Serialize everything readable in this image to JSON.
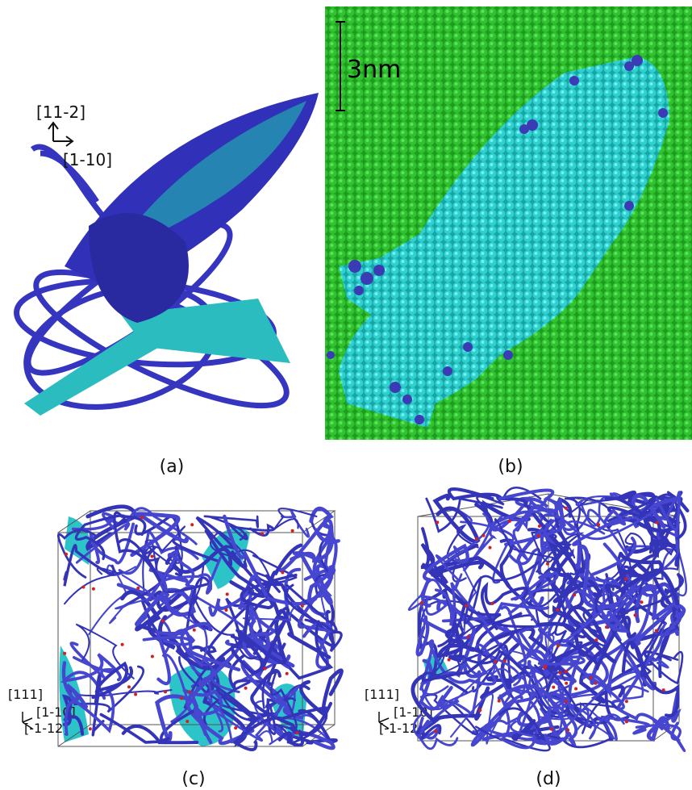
{
  "panels": [
    {
      "label": "(a)",
      "axes": [
        "[11-2]",
        "[1-10]"
      ]
    },
    {
      "label": "(b)",
      "scale_bar": "3nm"
    },
    {
      "label": "(c)",
      "axes": [
        "[111]",
        "[1-10]",
        "[-1-12]"
      ]
    },
    {
      "label": "(d)",
      "axes": [
        "[111]",
        "[1-10]",
        "[-1-12]"
      ]
    }
  ]
}
